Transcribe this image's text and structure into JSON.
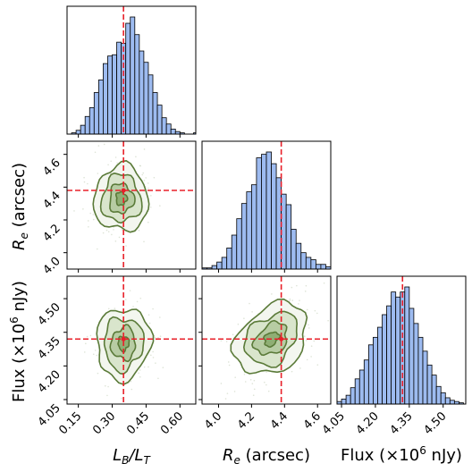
{
  "chart_data": {
    "type": "corner",
    "parameters": [
      {
        "label_main": "L",
        "sub1": "B",
        "mid": "/L",
        "sub2": "T",
        "range": [
          0.1,
          0.67
        ],
        "ticks": [
          "0.15",
          "0.30",
          "0.45",
          "0.60"
        ],
        "tick_values": [
          0.15,
          0.3,
          0.45,
          0.6
        ],
        "truth": 0.35
      },
      {
        "label_main": "R",
        "sub1": "e",
        "rest": " (arcsec)",
        "range": [
          3.9,
          4.68
        ],
        "ticks_y": [
          "4.0",
          "4.2",
          "4.4",
          "4.6"
        ],
        "ticks_x": [
          "4.0",
          "4.2",
          "4.4",
          "4.6"
        ],
        "tick_values": [
          4.0,
          4.2,
          4.4,
          4.6
        ],
        "truth": 4.38
      },
      {
        "label_pre": "Flux (×10",
        "sup": "6",
        "label_post": " nJy)",
        "range": [
          4.03,
          4.6
        ],
        "ticks": [
          "4.05",
          "4.20",
          "4.35",
          "4.50"
        ],
        "tick_values": [
          4.05,
          4.2,
          4.35,
          4.5
        ],
        "truth": 4.32
      }
    ],
    "histograms": [
      {
        "param": 0,
        "bins": [
          0.12,
          0.14,
          0.16,
          0.18,
          0.2,
          0.22,
          0.24,
          0.26,
          0.28,
          0.3,
          0.32,
          0.34,
          0.36,
          0.38,
          0.4,
          0.42,
          0.44,
          0.46,
          0.48,
          0.5,
          0.52,
          0.54,
          0.56,
          0.58,
          0.6,
          0.62,
          0.64,
          0.66
        ],
        "counts": [
          1,
          3,
          7,
          14,
          21,
          33,
          43,
          56,
          62,
          63,
          73,
          72,
          88,
          93,
          79,
          66,
          57,
          47,
          33,
          23,
          13,
          8,
          4,
          2,
          1,
          0,
          0,
          1
        ]
      },
      {
        "param": 1,
        "bins": [
          3.9,
          3.93,
          3.96,
          3.99,
          4.02,
          4.05,
          4.08,
          4.11,
          4.14,
          4.17,
          4.2,
          4.23,
          4.26,
          4.29,
          4.32,
          4.35,
          4.38,
          4.41,
          4.44,
          4.47,
          4.5,
          4.53,
          4.56,
          4.59,
          4.62,
          4.65
        ],
        "counts": [
          1,
          1,
          3,
          6,
          10,
          18,
          29,
          43,
          56,
          66,
          72,
          95,
          98,
          100,
          90,
          78,
          64,
          55,
          34,
          22,
          14,
          10,
          8,
          4,
          4,
          2
        ]
      },
      {
        "param": 2,
        "bins": [
          4.03,
          4.05,
          4.07,
          4.09,
          4.11,
          4.13,
          4.15,
          4.17,
          4.19,
          4.21,
          4.23,
          4.25,
          4.27,
          4.29,
          4.31,
          4.33,
          4.35,
          4.37,
          4.39,
          4.41,
          4.43,
          4.45,
          4.47,
          4.49,
          4.51,
          4.53,
          4.55,
          4.57
        ],
        "counts": [
          2,
          4,
          7,
          13,
          20,
          27,
          35,
          47,
          53,
          61,
          71,
          78,
          89,
          85,
          89,
          93,
          76,
          64,
          53,
          42,
          31,
          23,
          14,
          9,
          5,
          3,
          2,
          1
        ]
      }
    ],
    "contours": [
      {
        "x": 0,
        "y": 1,
        "center": [
          0.34,
          4.33
        ],
        "sigma": [
          0.06,
          0.1
        ],
        "rho": 0.0
      },
      {
        "x": 0,
        "y": 2,
        "center": [
          0.35,
          4.3
        ],
        "sigma": [
          0.06,
          0.08
        ],
        "rho": 0.05
      },
      {
        "x": 1,
        "y": 2,
        "center": [
          4.32,
          4.32
        ],
        "sigma": [
          0.11,
          0.08
        ],
        "rho": 0.3
      }
    ],
    "colors": {
      "hist_fill": "#9dbbf0",
      "hist_edge": "#000000",
      "truth": "#e8202a",
      "contour": "#5a7a38",
      "contour_fill": "#d9e5cc",
      "contour_fill_dark": "#8fae74"
    }
  }
}
